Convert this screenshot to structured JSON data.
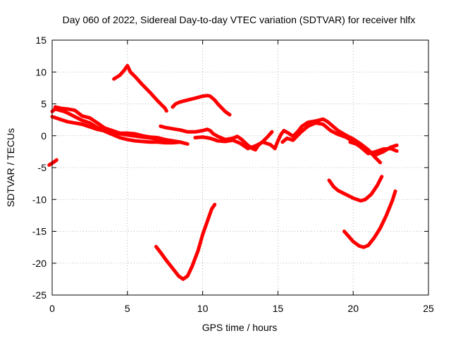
{
  "chart_data": {
    "type": "scatter",
    "title": "Day 060 of 2022, Sidereal Day-to-day VTEC variation (SDTVAR) for receiver hlfx",
    "xlabel": "GPS time / hours",
    "ylabel": "SDTVAR / TECUs",
    "xlim": [
      0,
      25
    ],
    "ylim": [
      -25,
      15
    ],
    "xticks": [
      0,
      5,
      10,
      15,
      20,
      25
    ],
    "yticks": [
      -25,
      -20,
      -15,
      -10,
      -5,
      0,
      5,
      10,
      15
    ],
    "grid": true,
    "color": "#ff0000",
    "series": [
      {
        "name": "s1",
        "points": [
          [
            -0.2,
            -4.6
          ],
          [
            0.2,
            -4.0
          ],
          [
            0.3,
            -3.8
          ]
        ]
      },
      {
        "name": "s2",
        "points": [
          [
            0.0,
            3.8
          ],
          [
            0.2,
            4.2
          ],
          [
            0.5,
            4.0
          ],
          [
            0.8,
            3.8
          ],
          [
            1.0,
            3.6
          ],
          [
            1.5,
            3.0
          ],
          [
            2.0,
            2.4
          ],
          [
            2.5,
            2.0
          ],
          [
            3.0,
            1.3
          ],
          [
            3.5,
            0.7
          ],
          [
            4.0,
            0.2
          ],
          [
            4.5,
            -0.3
          ],
          [
            5.0,
            -0.6
          ],
          [
            5.5,
            -0.8
          ],
          [
            6.0,
            -0.9
          ],
          [
            6.5,
            -1.0
          ],
          [
            7.0,
            -1.0
          ],
          [
            7.5,
            -1.1
          ],
          [
            8.0,
            -1.1
          ],
          [
            8.5,
            -1.0
          ]
        ]
      },
      {
        "name": "s3",
        "points": [
          [
            0.0,
            3.0
          ],
          [
            0.5,
            2.6
          ],
          [
            1.0,
            2.2
          ],
          [
            2.0,
            1.8
          ],
          [
            3.0,
            1.0
          ],
          [
            4.0,
            0.5
          ],
          [
            5.0,
            0.1
          ],
          [
            6.0,
            -0.2
          ],
          [
            7.0,
            -0.5
          ],
          [
            7.5,
            -0.8
          ]
        ]
      },
      {
        "name": "s4",
        "points": [
          [
            0.2,
            4.5
          ],
          [
            0.6,
            4.3
          ],
          [
            1.0,
            4.2
          ],
          [
            1.5,
            4.0
          ],
          [
            2.0,
            3.1
          ],
          [
            2.5,
            2.8
          ],
          [
            3.0,
            2.0
          ],
          [
            3.5,
            1.2
          ],
          [
            4.0,
            0.8
          ],
          [
            4.5,
            0.4
          ],
          [
            5.0,
            0.4
          ],
          [
            5.5,
            0.3
          ],
          [
            6.0,
            0.0
          ],
          [
            6.5,
            -0.2
          ],
          [
            7.0,
            -0.3
          ],
          [
            7.5,
            -0.6
          ],
          [
            8.0,
            -0.8
          ],
          [
            8.5,
            -1.0
          ],
          [
            9.0,
            -1.3
          ]
        ]
      },
      {
        "name": "s5",
        "points": [
          [
            4.1,
            8.9
          ],
          [
            4.5,
            9.5
          ],
          [
            4.8,
            10.3
          ],
          [
            5.0,
            11.0
          ],
          [
            5.2,
            10.0
          ],
          [
            5.5,
            9.3
          ],
          [
            6.0,
            8.0
          ],
          [
            6.5,
            6.8
          ],
          [
            7.0,
            5.5
          ],
          [
            7.5,
            4.3
          ],
          [
            7.6,
            3.9
          ]
        ]
      },
      {
        "name": "s6",
        "points": [
          [
            8.0,
            4.5
          ],
          [
            8.2,
            5.0
          ],
          [
            8.5,
            5.3
          ],
          [
            9.0,
            5.6
          ],
          [
            9.5,
            5.9
          ],
          [
            10.0,
            6.2
          ],
          [
            10.3,
            6.3
          ],
          [
            10.5,
            6.2
          ],
          [
            10.8,
            5.6
          ],
          [
            11.0,
            5.0
          ],
          [
            11.5,
            3.8
          ],
          [
            11.8,
            3.3
          ]
        ]
      },
      {
        "name": "s7",
        "points": [
          [
            7.2,
            1.5
          ],
          [
            7.5,
            1.3
          ],
          [
            8.0,
            1.1
          ],
          [
            8.5,
            0.9
          ],
          [
            9.0,
            0.6
          ],
          [
            9.5,
            0.6
          ],
          [
            10.0,
            0.8
          ],
          [
            10.3,
            1.0
          ],
          [
            10.5,
            0.8
          ],
          [
            10.7,
            0.3
          ],
          [
            11.0,
            -0.1
          ],
          [
            11.5,
            -0.6
          ],
          [
            12.0,
            -0.4
          ],
          [
            12.3,
            -0.1
          ],
          [
            12.6,
            -0.6
          ],
          [
            13.0,
            -1.5
          ],
          [
            13.3,
            -2.0
          ],
          [
            13.5,
            -2.2
          ],
          [
            13.7,
            -1.5
          ],
          [
            14.0,
            -0.9
          ],
          [
            14.3,
            -0.2
          ],
          [
            14.6,
            0.6
          ]
        ]
      },
      {
        "name": "s8",
        "points": [
          [
            9.5,
            -0.3
          ],
          [
            10.0,
            -0.2
          ],
          [
            10.5,
            -0.4
          ],
          [
            11.0,
            -0.8
          ],
          [
            11.5,
            -0.9
          ],
          [
            12.0,
            -0.7
          ],
          [
            12.5,
            -1.2
          ],
          [
            13.0,
            -2.0
          ],
          [
            13.5,
            -1.6
          ],
          [
            14.0,
            -1.0
          ],
          [
            14.5,
            -1.4
          ],
          [
            14.8,
            -2.0
          ]
        ]
      },
      {
        "name": "s9",
        "points": [
          [
            14.8,
            -2.0
          ],
          [
            15.0,
            -0.8
          ],
          [
            15.2,
            0.2
          ],
          [
            15.4,
            0.8
          ],
          [
            15.7,
            0.4
          ],
          [
            16.0,
            -0.1
          ],
          [
            16.3,
            0.6
          ],
          [
            16.6,
            1.5
          ],
          [
            17.0,
            2.1
          ],
          [
            17.5,
            2.3
          ],
          [
            18.0,
            2.6
          ],
          [
            18.3,
            2.2
          ],
          [
            18.7,
            1.4
          ],
          [
            19.0,
            0.8
          ],
          [
            19.5,
            0.1
          ],
          [
            20.0,
            -0.5
          ],
          [
            20.5,
            -1.3
          ],
          [
            21.0,
            -2.2
          ],
          [
            21.5,
            -3.5
          ],
          [
            21.8,
            -4.2
          ]
        ]
      },
      {
        "name": "s10",
        "points": [
          [
            15.3,
            -1.0
          ],
          [
            15.6,
            -0.4
          ],
          [
            16.0,
            -0.7
          ],
          [
            16.5,
            0.5
          ],
          [
            17.0,
            1.5
          ],
          [
            17.5,
            2.0
          ],
          [
            18.0,
            1.8
          ],
          [
            18.5,
            0.8
          ],
          [
            19.0,
            0.2
          ],
          [
            19.5,
            -0.2
          ],
          [
            20.0,
            -0.9
          ],
          [
            20.5,
            -1.8
          ],
          [
            21.0,
            -2.8
          ],
          [
            21.5,
            -2.5
          ],
          [
            22.0,
            -2.1
          ],
          [
            22.5,
            -2.0
          ],
          [
            22.9,
            -2.4
          ]
        ]
      },
      {
        "name": "s11",
        "points": [
          [
            19.8,
            -1.0
          ],
          [
            20.2,
            -1.3
          ],
          [
            20.6,
            -1.8
          ],
          [
            21.0,
            -2.6
          ],
          [
            21.5,
            -3.0
          ],
          [
            22.0,
            -2.5
          ],
          [
            22.5,
            -1.8
          ],
          [
            22.9,
            -1.5
          ]
        ]
      },
      {
        "name": "s12",
        "points": [
          [
            18.4,
            -7.0
          ],
          [
            18.7,
            -8.0
          ],
          [
            19.0,
            -8.6
          ],
          [
            19.5,
            -9.2
          ],
          [
            20.0,
            -9.8
          ],
          [
            20.5,
            -10.2
          ],
          [
            20.8,
            -10.0
          ],
          [
            21.2,
            -9.2
          ],
          [
            21.6,
            -7.8
          ],
          [
            21.9,
            -6.4
          ]
        ]
      },
      {
        "name": "s13",
        "points": [
          [
            19.4,
            -15.0
          ],
          [
            19.7,
            -15.8
          ],
          [
            20.0,
            -16.6
          ],
          [
            20.4,
            -17.3
          ],
          [
            20.7,
            -17.5
          ],
          [
            21.0,
            -17.2
          ],
          [
            21.4,
            -16.0
          ],
          [
            21.8,
            -14.5
          ],
          [
            22.2,
            -12.5
          ],
          [
            22.6,
            -10.2
          ],
          [
            22.8,
            -8.7
          ]
        ]
      },
      {
        "name": "s14",
        "points": [
          [
            6.9,
            -17.4
          ],
          [
            7.2,
            -18.3
          ],
          [
            7.6,
            -19.6
          ],
          [
            8.0,
            -20.8
          ],
          [
            8.4,
            -22.0
          ],
          [
            8.7,
            -22.5
          ],
          [
            9.0,
            -22.0
          ],
          [
            9.3,
            -20.5
          ],
          [
            9.7,
            -18.0
          ],
          [
            10.0,
            -15.5
          ],
          [
            10.3,
            -13.5
          ],
          [
            10.6,
            -11.5
          ],
          [
            10.8,
            -10.8
          ]
        ]
      }
    ]
  }
}
